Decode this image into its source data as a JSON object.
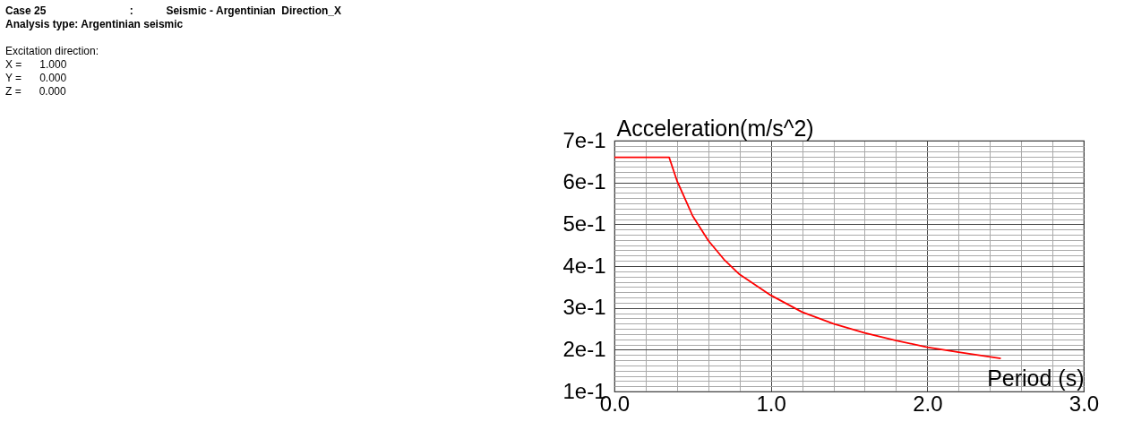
{
  "chart_data": {
    "type": "line",
    "annotations": [
      "Case 25                            :           Seismic - Argentinian  Direction_X",
      "Analysis type: Argentinian seismic",
      "Excitation direction:",
      "X =      1.000",
      "Y =      0.000",
      "Z =      0.000"
    ],
    "xlabel": "Period (s)",
    "ylabel": "Acceleration(m/s^2)",
    "x": [
      0,
      0.35,
      0.4,
      0.5,
      0.6,
      0.7,
      0.8,
      1.0,
      1.2,
      1.4,
      1.6,
      1.8,
      2.0,
      2.2,
      2.47
    ],
    "series": [
      {
        "color": "#ff0000",
        "values": [
          0.66,
          0.66,
          0.604,
          0.52,
          0.461,
          0.416,
          0.38,
          0.33,
          0.29,
          0.262,
          0.24,
          0.222,
          0.206,
          0.194,
          0.179
        ]
      }
    ],
    "xlim": [
      0,
      3
    ],
    "ylim": [
      0.1,
      0.7
    ],
    "xticks": [
      {
        "value": 0,
        "label": "0.0"
      },
      {
        "value": 0.2,
        "label": null
      },
      {
        "value": 0.4,
        "label": null
      },
      {
        "value": 0.6,
        "label": null
      },
      {
        "value": 0.8,
        "label": null
      },
      {
        "value": 1,
        "label": "1.0"
      },
      {
        "value": 1.2,
        "label": null
      },
      {
        "value": 1.4,
        "label": null
      },
      {
        "value": 1.6,
        "label": null
      },
      {
        "value": 1.8,
        "label": null
      },
      {
        "value": 2,
        "label": "2.0"
      },
      {
        "value": 2.2,
        "label": null
      },
      {
        "value": 2.4,
        "label": null
      },
      {
        "value": 2.6,
        "label": null
      },
      {
        "value": 2.8,
        "label": null
      },
      {
        "value": 3,
        "label": "3.0"
      }
    ],
    "yticks": [
      {
        "value": 0.1,
        "label": "1e-1"
      },
      {
        "value": 0.1125,
        "label": null
      },
      {
        "value": 0.125,
        "label": null
      },
      {
        "value": 0.1375,
        "label": null
      },
      {
        "value": 0.15,
        "label": null
      },
      {
        "value": 0.1625,
        "label": null
      },
      {
        "value": 0.175,
        "label": null
      },
      {
        "value": 0.1875,
        "label": null
      },
      {
        "value": 0.2,
        "label": "2e-1"
      },
      {
        "value": 0.2125,
        "label": null
      },
      {
        "value": 0.225,
        "label": null
      },
      {
        "value": 0.2375,
        "label": null
      },
      {
        "value": 0.25,
        "label": null
      },
      {
        "value": 0.2625,
        "label": null
      },
      {
        "value": 0.275,
        "label": null
      },
      {
        "value": 0.2875,
        "label": null
      },
      {
        "value": 0.3,
        "label": "3e-1"
      },
      {
        "value": 0.3125,
        "label": null
      },
      {
        "value": 0.325,
        "label": null
      },
      {
        "value": 0.3375,
        "label": null
      },
      {
        "value": 0.35,
        "label": null
      },
      {
        "value": 0.3625,
        "label": null
      },
      {
        "value": 0.375,
        "label": null
      },
      {
        "value": 0.3875,
        "label": null
      },
      {
        "value": 0.4,
        "label": "4e-1"
      },
      {
        "value": 0.4125,
        "label": null
      },
      {
        "value": 0.425,
        "label": null
      },
      {
        "value": 0.4375,
        "label": null
      },
      {
        "value": 0.45,
        "label": null
      },
      {
        "value": 0.4625,
        "label": null
      },
      {
        "value": 0.475,
        "label": null
      },
      {
        "value": 0.4875,
        "label": null
      },
      {
        "value": 0.5,
        "label": "5e-1"
      },
      {
        "value": 0.5125,
        "label": null
      },
      {
        "value": 0.525,
        "label": null
      },
      {
        "value": 0.5375,
        "label": null
      },
      {
        "value": 0.55,
        "label": null
      },
      {
        "value": 0.5625,
        "label": null
      },
      {
        "value": 0.575,
        "label": null
      },
      {
        "value": 0.5875,
        "label": null
      },
      {
        "value": 0.6,
        "label": "6e-1"
      },
      {
        "value": 0.6125,
        "label": null
      },
      {
        "value": 0.625,
        "label": null
      },
      {
        "value": 0.6375,
        "label": null
      },
      {
        "value": 0.65,
        "label": null
      },
      {
        "value": 0.6625,
        "label": null
      },
      {
        "value": 0.675,
        "label": null
      },
      {
        "value": 0.6875,
        "label": null
      },
      {
        "value": 0.7,
        "label": "7e-1"
      }
    ],
    "grid": true
  }
}
